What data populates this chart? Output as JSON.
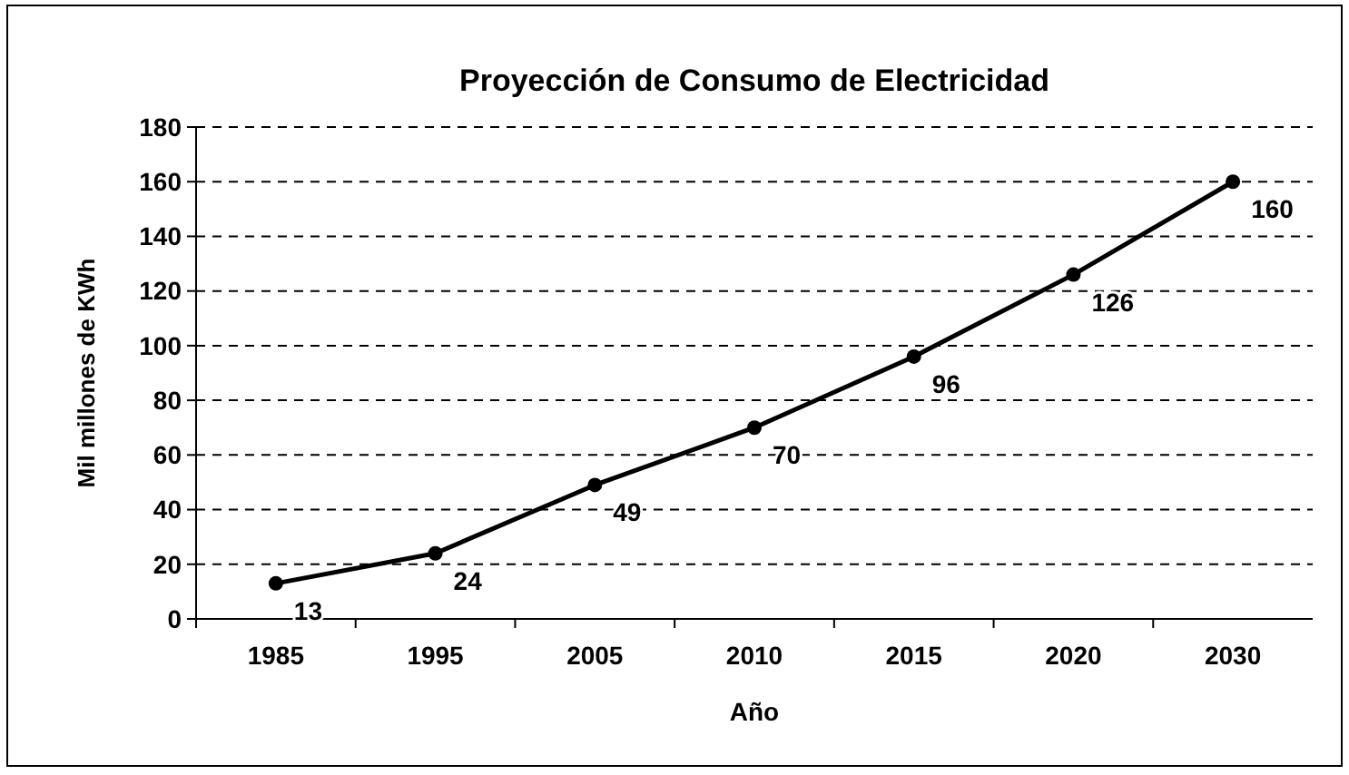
{
  "chart_data": {
    "type": "line",
    "title": "Proyección de Consumo de Electricidad",
    "xlabel": "Año",
    "ylabel": "Mil millones de KWh",
    "categories": [
      "1985",
      "1995",
      "2005",
      "2010",
      "2015",
      "2020",
      "2030"
    ],
    "series": [
      {
        "color": "#000000",
        "values": [
          13,
          24,
          49,
          70,
          96,
          126,
          160
        ]
      }
    ],
    "ylim": [
      0,
      180
    ],
    "yticks": [
      0,
      20,
      40,
      60,
      80,
      100,
      120,
      140,
      160,
      180
    ],
    "grid": "y",
    "marker": "circle",
    "line_style": "solid",
    "data_labels": true
  }
}
